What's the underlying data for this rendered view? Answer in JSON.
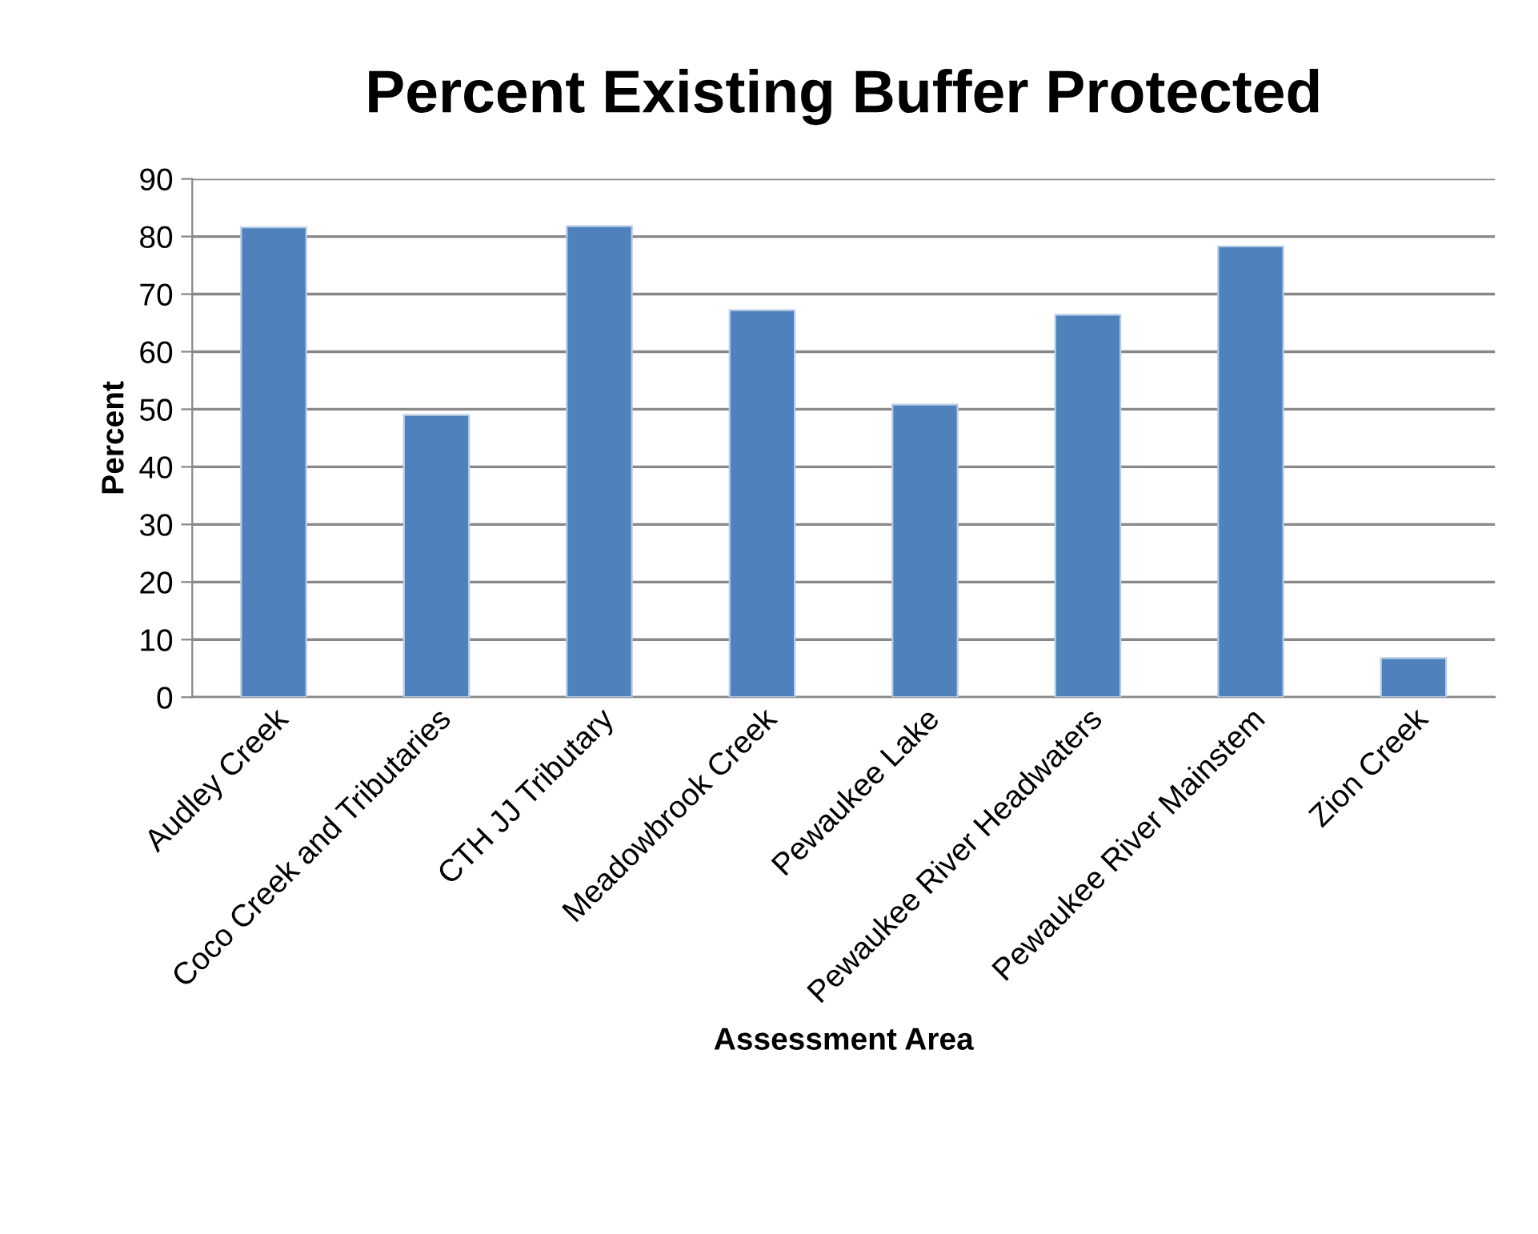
{
  "chart_data": {
    "type": "bar",
    "title": "Percent Existing Buffer Protected",
    "xlabel": "Assessment Area",
    "ylabel": "Percent",
    "categories": [
      "Audley Creek",
      "Coco Creek and Tributaries",
      "CTH JJ Tributary",
      "Meadowbrook Creek",
      "Pewaukee Lake",
      "Pewaukee River Headwaters",
      "Pewaukee River Mainstem",
      "Zion Creek"
    ],
    "values": [
      81.6,
      49.0,
      81.8,
      67.2,
      50.8,
      66.4,
      78.3,
      6.8
    ],
    "color": "#4f81bd",
    "ylim": [
      0,
      90
    ],
    "yticks": [
      0,
      10,
      20,
      30,
      40,
      50,
      60,
      70,
      80,
      90
    ],
    "grid": "y",
    "legend": false
  }
}
